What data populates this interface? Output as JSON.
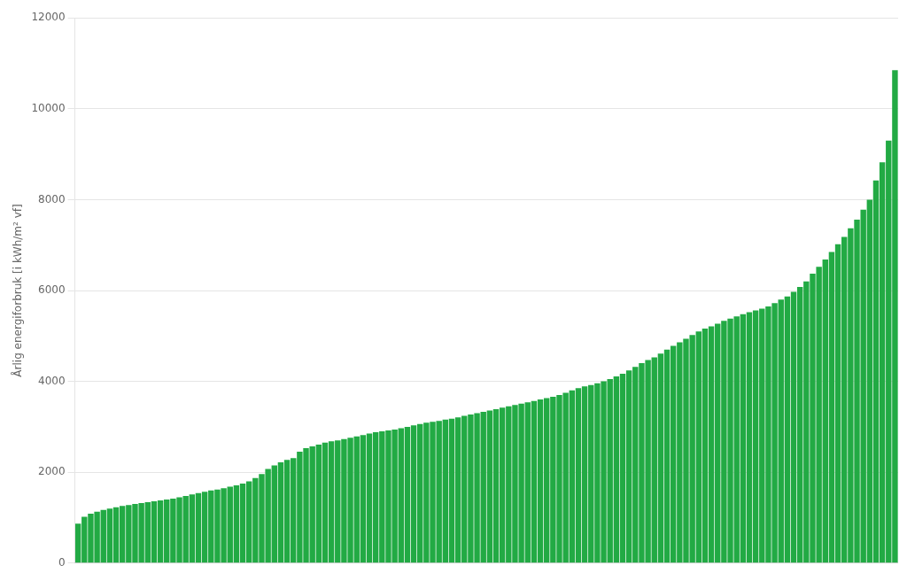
{
  "chart_data": {
    "type": "bar",
    "ylabel": "Årlig energiforbruk [i kWh/m² vf]",
    "categories": [
      null,
      null,
      null,
      null,
      null,
      null,
      null,
      null,
      null,
      null,
      null,
      null,
      null,
      null,
      null,
      null,
      null,
      null,
      null,
      null,
      null,
      null,
      null,
      null,
      null,
      null,
      null,
      null,
      null,
      null,
      null,
      null,
      null,
      null,
      null,
      null,
      null,
      null,
      null,
      null,
      null,
      null,
      null,
      null,
      null,
      null,
      null,
      null,
      null,
      null,
      null,
      null,
      null,
      null,
      null,
      null,
      null,
      null,
      null,
      null,
      null,
      null,
      null,
      null,
      null,
      null,
      null,
      null,
      null,
      null,
      null,
      null,
      null,
      null,
      null,
      null,
      null,
      null,
      null,
      null,
      null,
      null,
      null,
      null,
      null,
      null,
      null,
      null,
      null,
      null,
      null,
      null,
      null,
      null,
      null,
      null,
      null,
      null,
      null,
      null,
      null,
      null,
      null,
      null,
      null,
      null,
      null,
      null,
      null,
      null,
      null,
      null,
      null,
      null,
      null,
      null,
      null,
      null,
      null,
      null,
      null,
      null,
      null,
      null,
      null,
      null,
      null,
      null,
      null,
      null
    ],
    "values": [
      870,
      1020,
      1090,
      1130,
      1170,
      1200,
      1230,
      1260,
      1280,
      1300,
      1320,
      1340,
      1360,
      1380,
      1400,
      1420,
      1450,
      1480,
      1510,
      1540,
      1570,
      1600,
      1620,
      1650,
      1680,
      1710,
      1750,
      1800,
      1870,
      1960,
      2070,
      2150,
      2220,
      2270,
      2310,
      2450,
      2530,
      2570,
      2610,
      2650,
      2680,
      2700,
      2730,
      2760,
      2790,
      2820,
      2850,
      2880,
      2900,
      2920,
      2940,
      2970,
      3000,
      3030,
      3060,
      3090,
      3110,
      3130,
      3160,
      3180,
      3210,
      3240,
      3270,
      3300,
      3330,
      3360,
      3390,
      3420,
      3450,
      3480,
      3510,
      3540,
      3570,
      3600,
      3630,
      3660,
      3700,
      3750,
      3800,
      3850,
      3890,
      3920,
      3960,
      4000,
      4050,
      4110,
      4170,
      4240,
      4320,
      4400,
      4470,
      4530,
      4610,
      4700,
      4780,
      4860,
      4940,
      5020,
      5100,
      5160,
      5210,
      5270,
      5330,
      5380,
      5430,
      5480,
      5520,
      5560,
      5600,
      5650,
      5720,
      5800,
      5870,
      5970,
      6080,
      6200,
      6370,
      6520,
      6680,
      6850,
      7020,
      7180,
      7370,
      7560,
      7780,
      8000,
      8420,
      8820,
      9300,
      10850
    ],
    "color": "#22aa44",
    "ylim": [
      0,
      12000
    ],
    "yticks": [
      0,
      2000,
      4000,
      6000,
      8000,
      10000,
      12000
    ],
    "grid": true,
    "tick_labels": "y"
  }
}
